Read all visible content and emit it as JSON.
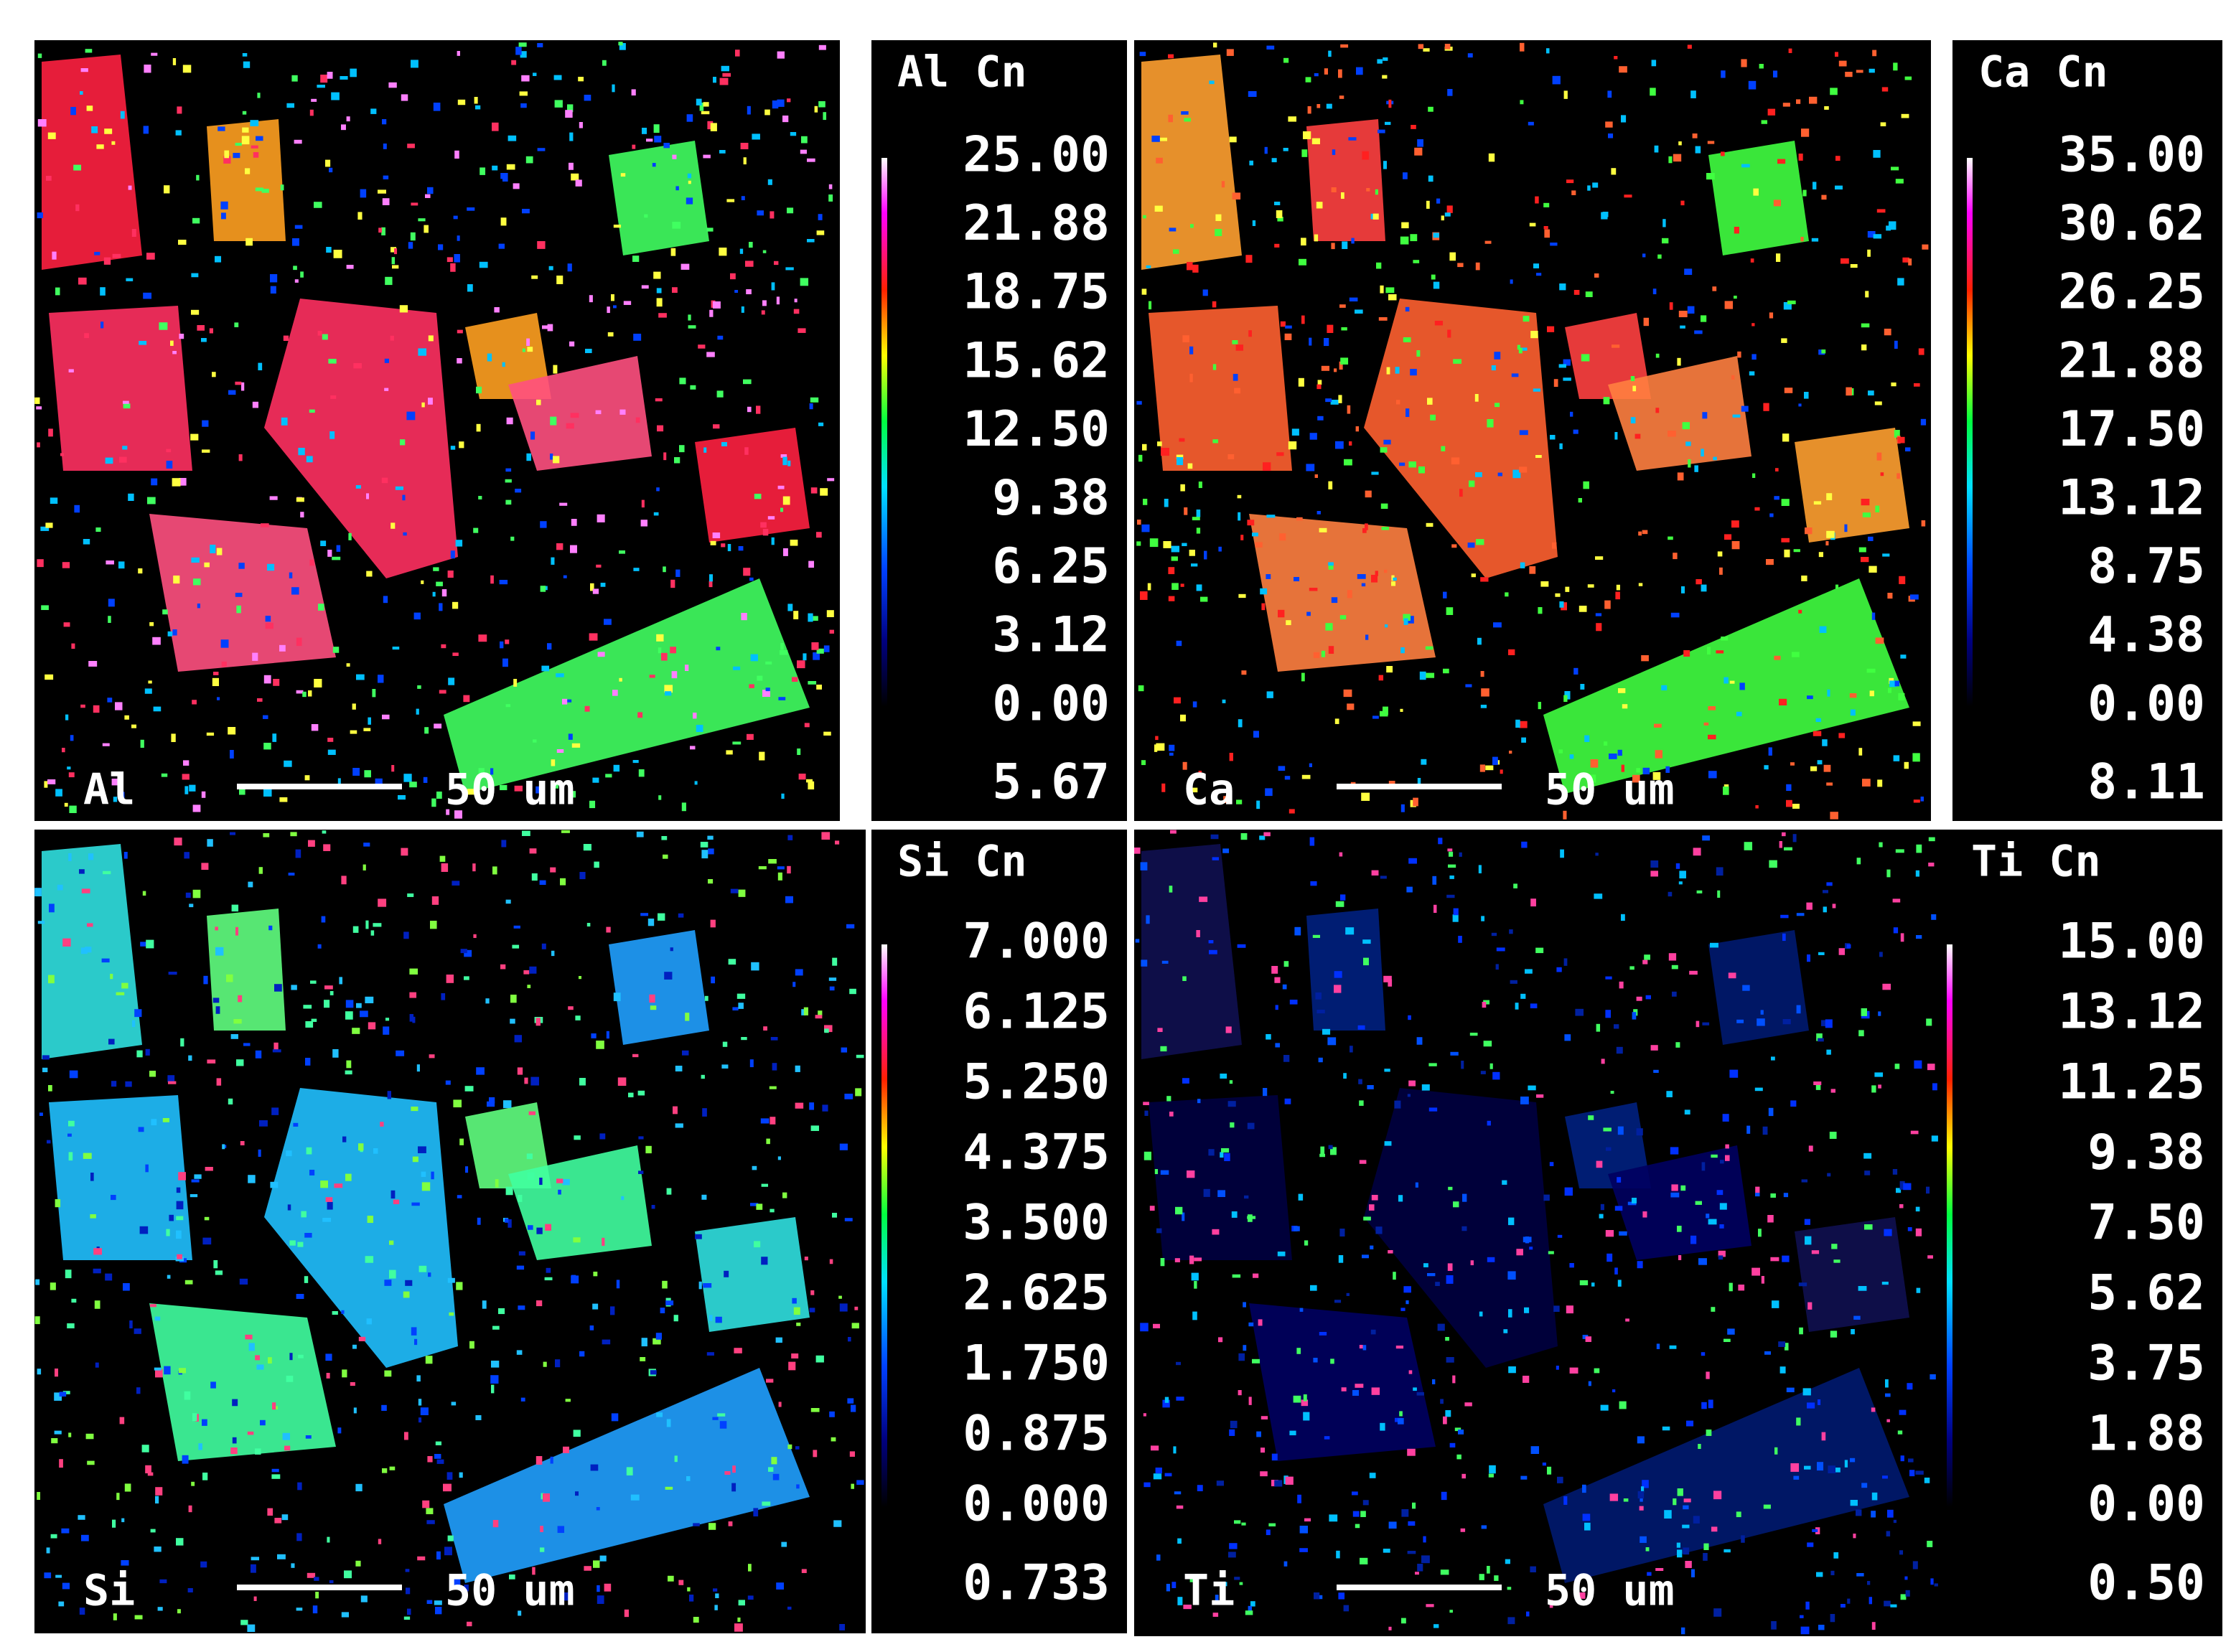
{
  "panels": [
    {
      "element": "Al",
      "scale_bar": "50 um",
      "colorbar": {
        "title": "Al Cn",
        "ticks": [
          "25.00",
          "21.88",
          "18.75",
          "15.62",
          "12.50",
          "9.38",
          "6.25",
          "3.12",
          "0.00"
        ],
        "extra": "5.67"
      }
    },
    {
      "element": "Ca",
      "scale_bar": "50 um",
      "colorbar": {
        "title": "Ca Cn",
        "ticks": [
          "35.00",
          "30.62",
          "26.25",
          "21.88",
          "17.50",
          "13.12",
          "8.75",
          "4.38",
          "0.00"
        ],
        "extra": "8.11"
      }
    },
    {
      "element": "Si",
      "scale_bar": "50 um",
      "colorbar": {
        "title": "Si Cn",
        "ticks": [
          "7.000",
          "6.125",
          "5.250",
          "4.375",
          "3.500",
          "2.625",
          "1.750",
          "0.875",
          "0.000"
        ],
        "extra": "0.733"
      }
    },
    {
      "element": "Ti",
      "scale_bar": "50 um",
      "colorbar": {
        "title": "Ti Cn",
        "ticks": [
          "15.00",
          "13.12",
          "11.25",
          "9.38",
          "7.50",
          "5.62",
          "3.75",
          "1.88",
          "0.00"
        ],
        "extra": "0.50"
      }
    }
  ]
}
